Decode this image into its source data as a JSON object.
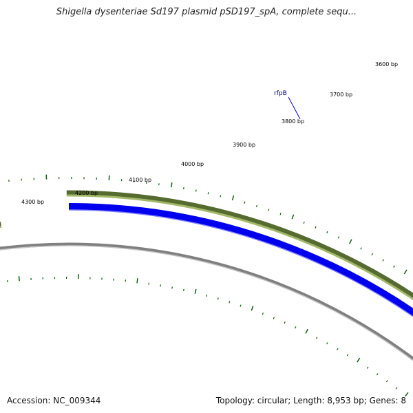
{
  "title": "Shigella dysenteriae Sd197 plasmid pSD197_spA, complete sequ...",
  "footer": {
    "accession": "Accession: NC_009344",
    "summary": "Topology: circular; Length: 8,953 bp; Genes: 8"
  },
  "scale_labels": [
    "3600 bp",
    "3700 bp",
    "3800 bp",
    "3900 bp",
    "4000 bp",
    "4100 bp",
    "4200 bp",
    "4300 bp"
  ],
  "gene_labels": [
    "rfpB"
  ],
  "colors": {
    "gene_feature": "#556b2f",
    "gene_feature_highlight": "#a4b86a",
    "cds_feature": "#0000ee",
    "backbone": "#808080",
    "tick": "#006400",
    "gene_label": "#00008b"
  }
}
